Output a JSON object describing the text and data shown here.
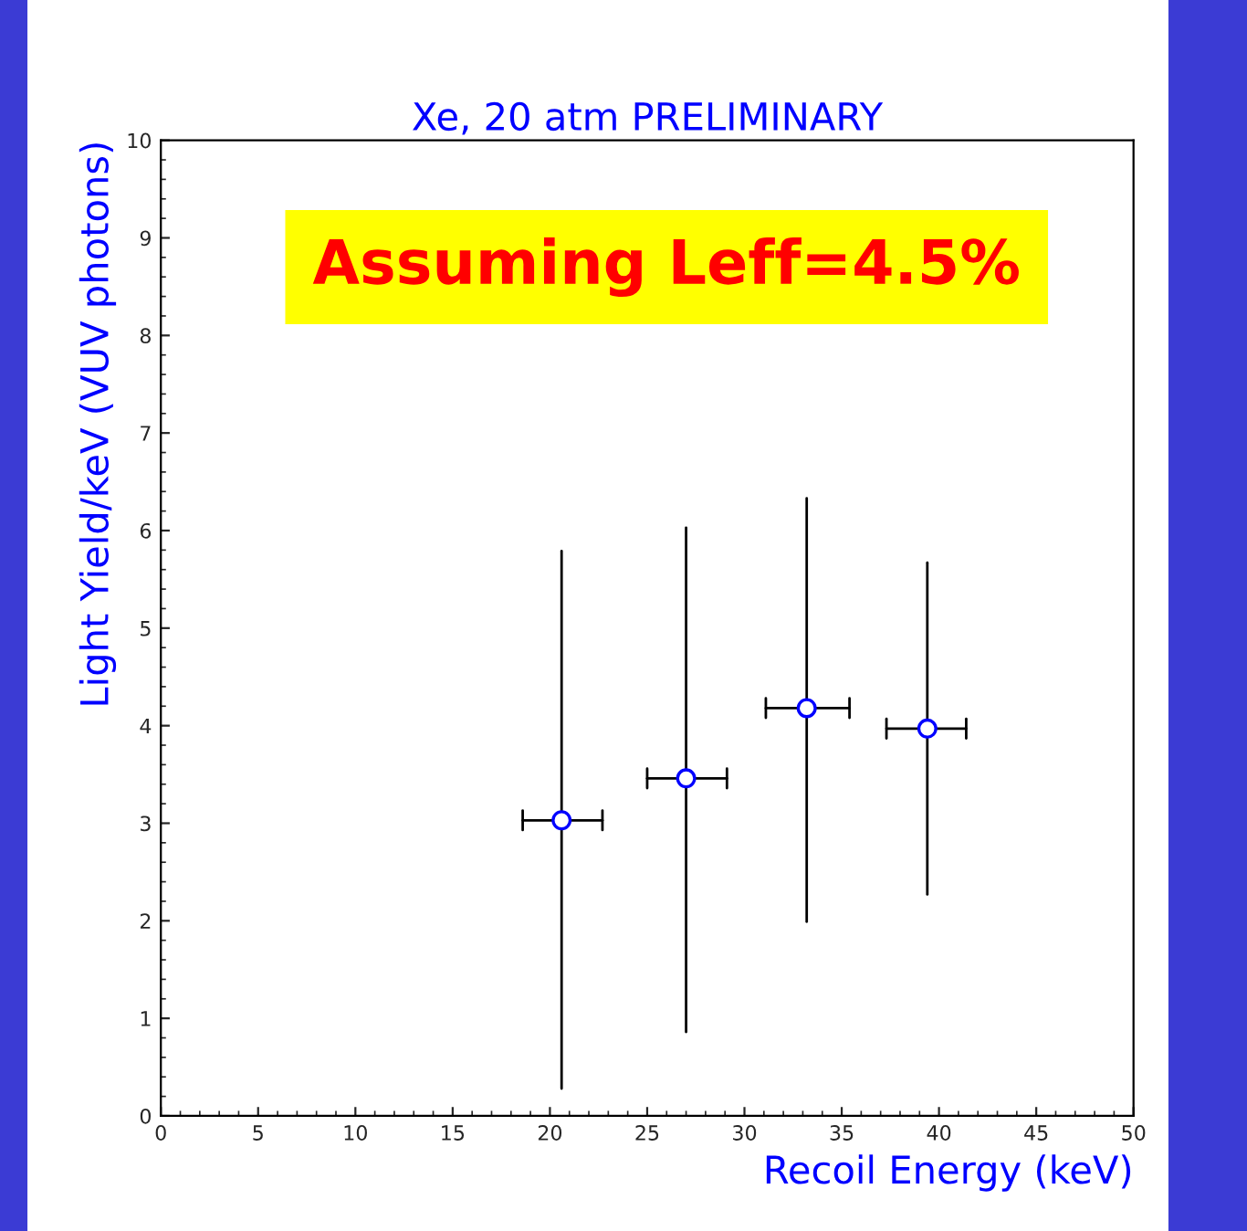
{
  "chart_data": {
    "type": "scatter",
    "title": "Xe, 20 atm PRELIMINARY",
    "xlabel": "Recoil Energy (keV)",
    "ylabel": "Light Yield/keV (VUV photons)",
    "annotations": [
      "Assuming Leff=4.5%"
    ],
    "series": [
      {
        "color": "#0000ff",
        "x": [
          20.6,
          27.0,
          33.2,
          39.4
        ],
        "values": [
          3.03,
          3.46,
          4.18,
          3.97
        ],
        "errors": [
          [
            0.28,
            5.79
          ],
          [
            0.86,
            6.03
          ],
          [
            1.99,
            6.33
          ],
          [
            2.27,
            5.67
          ]
        ],
        "xerrors": [
          [
            18.6,
            22.7
          ],
          [
            25.0,
            29.1
          ],
          [
            31.1,
            35.4
          ],
          [
            37.3,
            41.4
          ]
        ]
      }
    ],
    "xlim": [
      0,
      50
    ],
    "xticks": [
      0,
      5,
      10,
      15,
      20,
      25,
      30,
      35,
      40,
      45,
      50
    ],
    "ylim": [
      0,
      10
    ],
    "yticks": [
      0,
      1,
      2,
      3,
      4,
      5,
      6,
      7,
      8,
      9,
      10
    ],
    "grid": false,
    "legend": false,
    "marker": "circle"
  }
}
